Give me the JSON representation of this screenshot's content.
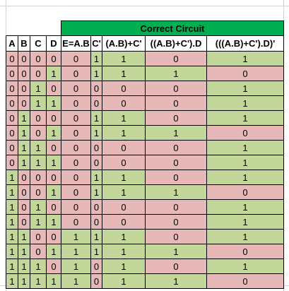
{
  "sheet": {
    "title": "Correct Circuit",
    "headers": [
      "A",
      "B",
      "C",
      "D",
      "E=A.B",
      "C'",
      "(A.B)+C'",
      "((A.B)+C').D",
      "(((A.B)+C').D)'"
    ],
    "colors": {
      "pink": "#e6b8b7",
      "green": "#c4d79b",
      "title_bg": "#00b050"
    },
    "rows": [
      [
        "0",
        "0",
        "0",
        "0",
        "0",
        "1",
        "1",
        "0",
        "1"
      ],
      [
        "0",
        "0",
        "0",
        "1",
        "0",
        "1",
        "1",
        "1",
        "0"
      ],
      [
        "0",
        "0",
        "1",
        "0",
        "0",
        "0",
        "0",
        "0",
        "1"
      ],
      [
        "0",
        "0",
        "1",
        "1",
        "0",
        "0",
        "0",
        "0",
        "1"
      ],
      [
        "0",
        "1",
        "0",
        "0",
        "0",
        "1",
        "1",
        "0",
        "1"
      ],
      [
        "0",
        "1",
        "0",
        "1",
        "0",
        "1",
        "1",
        "1",
        "0"
      ],
      [
        "0",
        "1",
        "1",
        "0",
        "0",
        "0",
        "0",
        "0",
        "1"
      ],
      [
        "0",
        "1",
        "1",
        "1",
        "0",
        "0",
        "0",
        "0",
        "1"
      ],
      [
        "1",
        "0",
        "0",
        "0",
        "0",
        "1",
        "1",
        "0",
        "1"
      ],
      [
        "1",
        "0",
        "0",
        "1",
        "0",
        "1",
        "1",
        "1",
        "0"
      ],
      [
        "1",
        "0",
        "1",
        "0",
        "0",
        "0",
        "0",
        "0",
        "1"
      ],
      [
        "1",
        "0",
        "1",
        "1",
        "0",
        "0",
        "0",
        "0",
        "1"
      ],
      [
        "1",
        "1",
        "0",
        "0",
        "1",
        "1",
        "1",
        "0",
        "1"
      ],
      [
        "1",
        "1",
        "0",
        "1",
        "1",
        "1",
        "1",
        "1",
        "0"
      ],
      [
        "1",
        "1",
        "1",
        "0",
        "1",
        "0",
        "1",
        "0",
        "1"
      ],
      [
        "1",
        "1",
        "1",
        "1",
        "1",
        "0",
        "1",
        "1",
        "0"
      ]
    ]
  }
}
